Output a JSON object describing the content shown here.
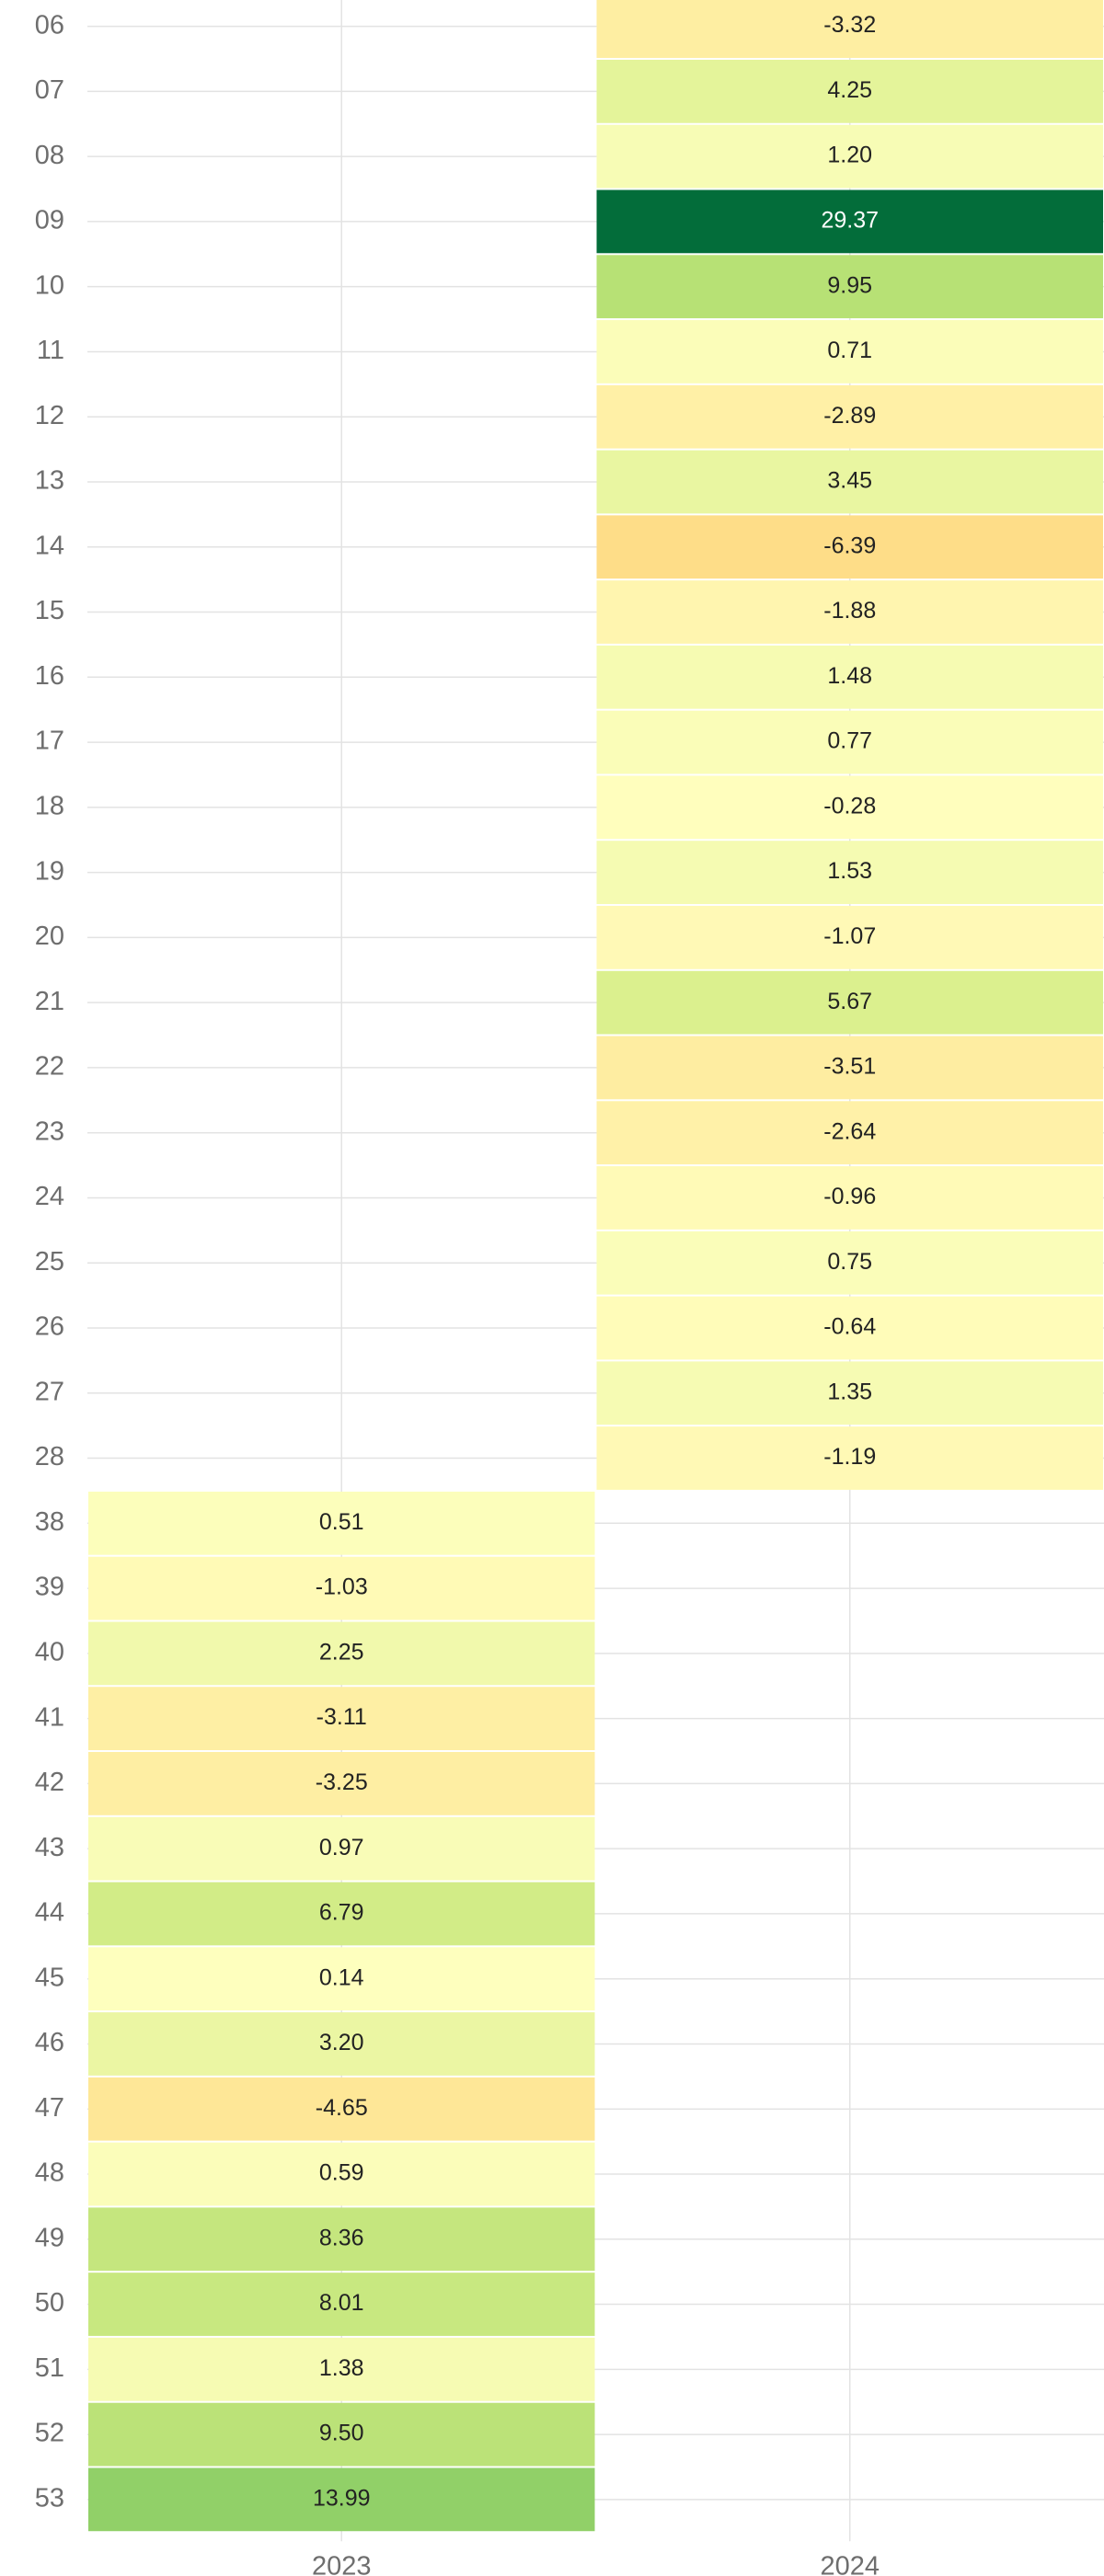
{
  "chart_data": {
    "type": "heatmap",
    "x_categories": [
      "2023",
      "2024"
    ],
    "y_categories": [
      "06",
      "07",
      "08",
      "09",
      "10",
      "11",
      "12",
      "13",
      "14",
      "15",
      "16",
      "17",
      "18",
      "19",
      "20",
      "21",
      "22",
      "23",
      "24",
      "25",
      "26",
      "27",
      "28",
      "38",
      "39",
      "40",
      "41",
      "42",
      "43",
      "44",
      "45",
      "46",
      "47",
      "48",
      "49",
      "50",
      "51",
      "52",
      "53"
    ],
    "values": [
      [
        null,
        null,
        null,
        null,
        null,
        null,
        null,
        null,
        null,
        null,
        null,
        null,
        null,
        null,
        null,
        null,
        null,
        null,
        null,
        null,
        null,
        null,
        null,
        0.51,
        -1.03,
        2.25,
        -3.11,
        -3.25,
        0.97,
        6.79,
        0.14,
        3.2,
        -4.65,
        0.59,
        8.36,
        8.01,
        1.38,
        9.5,
        13.99
      ],
      [
        -3.32,
        4.25,
        1.2,
        29.37,
        9.95,
        0.71,
        -2.89,
        3.45,
        -6.39,
        -1.88,
        1.48,
        0.77,
        -0.28,
        1.53,
        -1.07,
        5.67,
        -3.51,
        -2.64,
        -0.96,
        0.75,
        -0.64,
        1.35,
        -1.19,
        null,
        null,
        null,
        null,
        null,
        null,
        null,
        null,
        null,
        null,
        null,
        null,
        null,
        null,
        null,
        null
      ]
    ],
    "value_labels": [
      [
        null,
        null,
        null,
        null,
        null,
        null,
        null,
        null,
        null,
        null,
        null,
        null,
        null,
        null,
        null,
        null,
        null,
        null,
        null,
        null,
        null,
        null,
        null,
        "0.51",
        "-1.03",
        "2.25",
        "-3.11",
        "-3.25",
        "0.97",
        "6.79",
        "0.14",
        "3.20",
        "-4.65",
        "0.59",
        "8.36",
        "8.01",
        "1.38",
        "9.50",
        "13.99"
      ],
      [
        "-3.32",
        "4.25",
        "1.20",
        "29.37",
        "9.95",
        "0.71",
        "-2.89",
        "3.45",
        "-6.39",
        "-1.88",
        "1.48",
        "0.77",
        "-0.28",
        "1.53",
        "-1.07",
        "5.67",
        "-3.51",
        "-2.64",
        "-0.96",
        "0.75",
        "-0.64",
        "1.35",
        "-1.19",
        null,
        null,
        null,
        null,
        null,
        null,
        null,
        null,
        null,
        null,
        null,
        null,
        null,
        null,
        null,
        null
      ]
    ],
    "color_scale": {
      "domain": [
        -30,
        30
      ],
      "colors": [
        "#a50026",
        "#d73027",
        "#f46d43",
        "#fdae61",
        "#fee08b",
        "#ffffbf",
        "#d9ef8b",
        "#a6d96a",
        "#66bd63",
        "#1a9850",
        "#006837"
      ]
    },
    "grid": true
  }
}
